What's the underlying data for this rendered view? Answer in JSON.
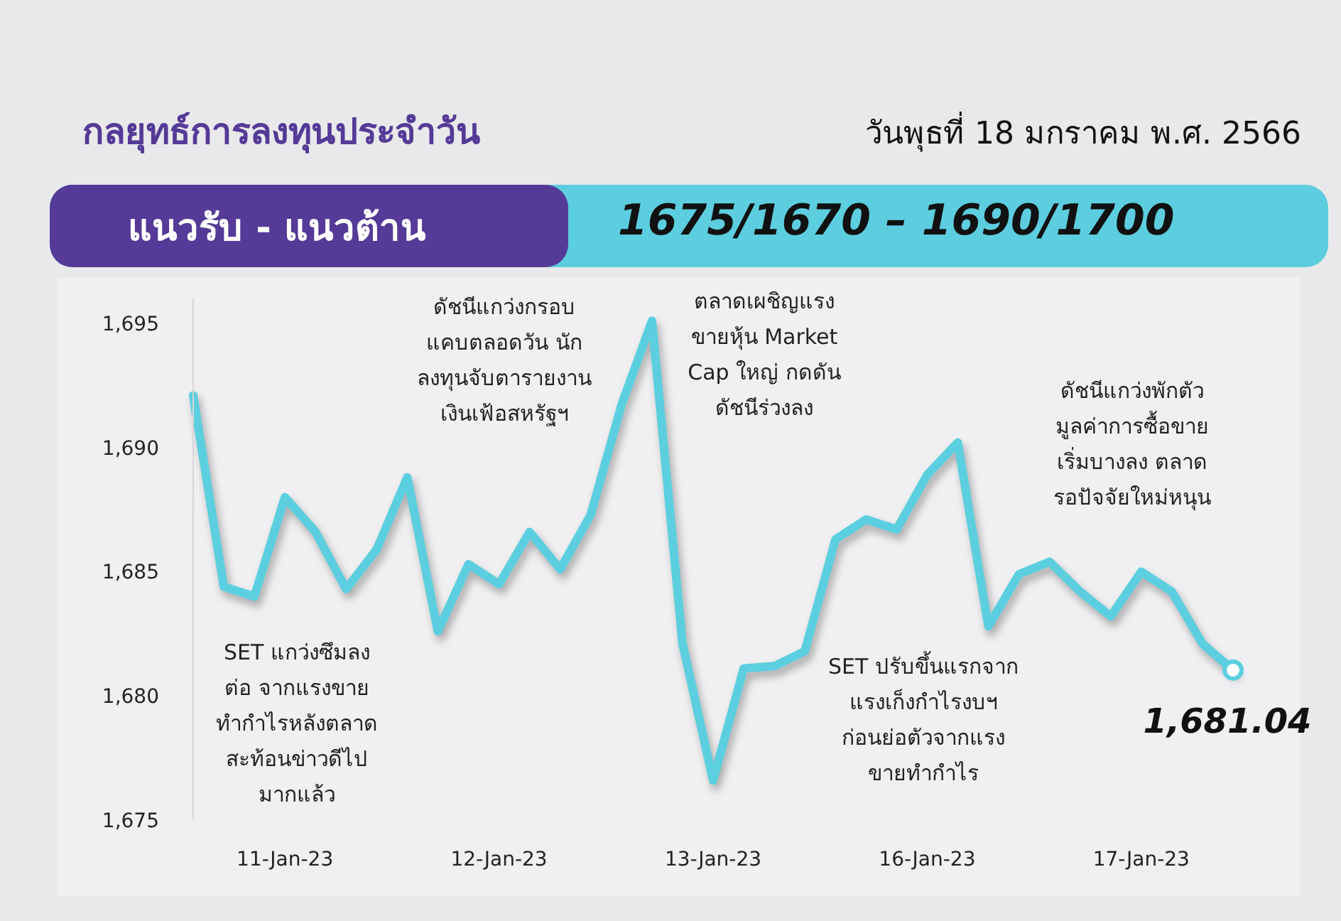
{
  "chart_data": {
    "type": "line",
    "title": "กลยุทธ์การลงทุนประจำวัน",
    "subtitle": "วันพุธที่ 18 มกราคม พ.ศ. 2566",
    "annotations": [
      "แนวรับ - แนวต้าน",
      "1675/1670 – 1690/1700",
      "SET แกว่งซึมลง\nต่อ จากแรงขาย\nทำกำไรหลังตลาด\nสะท้อนข่าวดีไป\nมากแล้ว",
      "ดัชนีแกว่งกรอบ\nแคบตลอดวัน นัก\nลงทุนจับตารายงาน\nเงินเฟ้อสหรัฐฯ",
      "ตลาดเผชิญแรง\nขายหุ้น Market\nCap ใหญ่ กดดัน\nดัชนีร่วงลง",
      "SET ปรับขึ้นแรกจาก\nแรงเก็งกำไรงบฯ\nก่อนย่อตัวจากแรง\nขายทำกำไร",
      "ดัชนีแกว่งพักตัว\nมูลค่าการซื้อขาย\nเริ่มบางลง ตลาด\nรอปัจจัยใหม่หนุน"
    ],
    "categories": [
      null,
      null,
      null,
      "11-Jan-23",
      null,
      null,
      null,
      null,
      null,
      null,
      "12-Jan-23",
      null,
      null,
      null,
      null,
      null,
      null,
      "13-Jan-23",
      null,
      null,
      null,
      null,
      null,
      null,
      "16-Jan-23",
      null,
      null,
      null,
      null,
      null,
      null,
      "17-Jan-23",
      null,
      null,
      null
    ],
    "series": [
      {
        "color": "#5bcfdf",
        "values": [
          1692.1,
          1684.4,
          1684.0,
          1688.0,
          1686.6,
          1684.3,
          1685.9,
          1688.8,
          1682.6,
          1685.3,
          1684.5,
          1686.6,
          1685.1,
          1687.3,
          1691.7,
          1695.1,
          1682.1,
          1676.6,
          1681.1,
          1681.2,
          1681.8,
          1686.3,
          1687.1,
          1686.7,
          1688.9,
          1690.2,
          1682.8,
          1684.9,
          1685.4,
          1684.2,
          1683.2,
          1685.0,
          1684.2,
          1682.1,
          1681.04
        ],
        "value_labels": [
          null,
          null,
          null,
          null,
          null,
          null,
          null,
          null,
          null,
          null,
          null,
          null,
          null,
          null,
          null,
          null,
          null,
          null,
          null,
          null,
          null,
          null,
          null,
          null,
          null,
          null,
          null,
          null,
          null,
          null,
          null,
          null,
          null,
          null,
          "1,681.04"
        ]
      }
    ],
    "ylim": [
      1675,
      1696
    ],
    "yticks": [
      {
        "value": 1675,
        "label": "1,675"
      },
      {
        "value": 1680,
        "label": "1,680"
      },
      {
        "value": 1685,
        "label": "1,685"
      },
      {
        "value": 1690,
        "label": "1,690"
      },
      {
        "value": 1695,
        "label": "1,695"
      }
    ],
    "line_style": "solid"
  }
}
